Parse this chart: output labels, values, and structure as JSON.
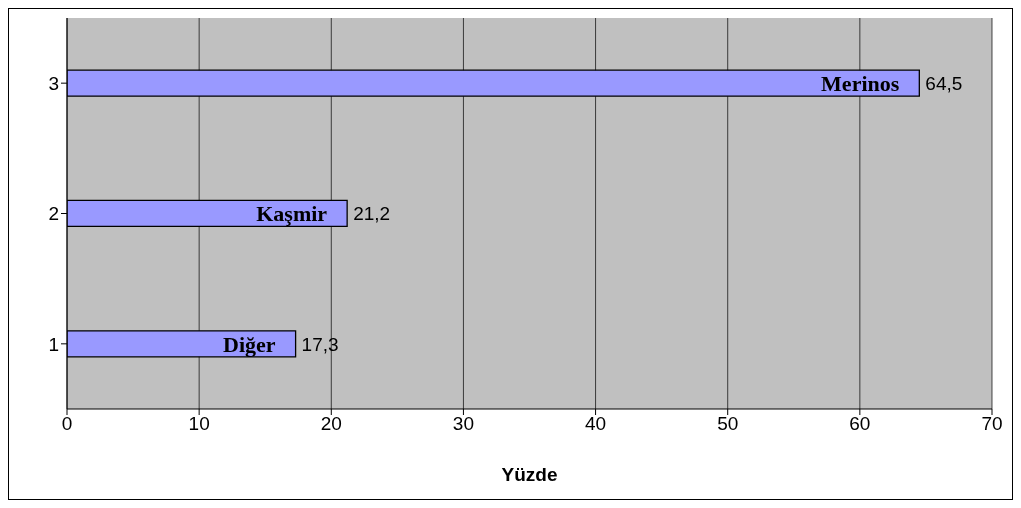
{
  "chart_data": {
    "type": "bar",
    "orientation": "horizontal",
    "xlabel": "Yüzde",
    "categories": [
      "3",
      "2",
      "1"
    ],
    "values": [
      64.5,
      21.2,
      17.3
    ],
    "value_labels": [
      "64,5",
      "21,2",
      "17,3"
    ],
    "color": "#9999ff",
    "xlim": [
      0,
      70
    ],
    "xticks": [
      0,
      10,
      20,
      30,
      40,
      50,
      60,
      70
    ],
    "grid": "x",
    "annotations": [
      {
        "text": "Merinos",
        "x": 64.5,
        "y": "3"
      },
      {
        "text": "Kaşmir",
        "x": 21.2,
        "y": "2"
      },
      {
        "text": "Diğer",
        "x": 17.3,
        "y": "1"
      }
    ]
  }
}
